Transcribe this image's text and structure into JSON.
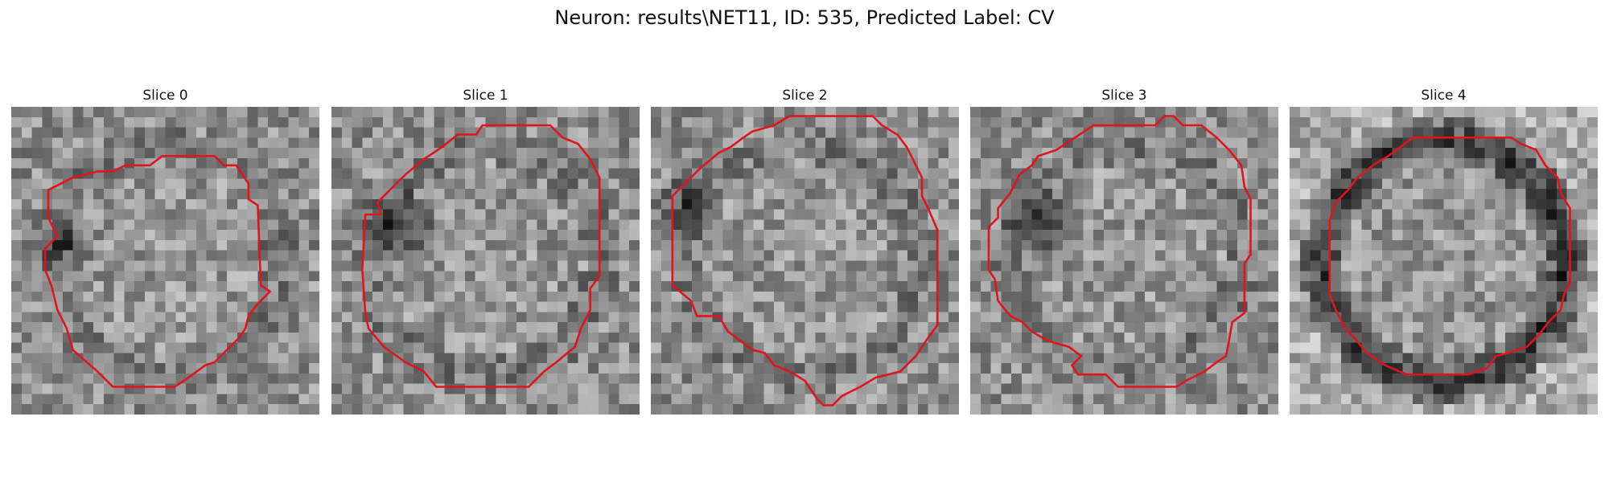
{
  "figure": {
    "title": "Neuron: results\\NET11, ID: 535, Predicted Label: CV"
  },
  "slices": [
    {
      "title": "Slice 0",
      "seed": 11,
      "darkBlob": [
        0.17,
        0.45,
        0.12
      ],
      "ring": 0.0,
      "contour": [
        [
          0.49,
          0.16
        ],
        [
          0.66,
          0.16
        ],
        [
          0.69,
          0.19
        ],
        [
          0.73,
          0.19
        ],
        [
          0.77,
          0.25
        ],
        [
          0.77,
          0.3
        ],
        [
          0.8,
          0.32
        ],
        [
          0.81,
          0.58
        ],
        [
          0.84,
          0.6
        ],
        [
          0.8,
          0.64
        ],
        [
          0.77,
          0.68
        ],
        [
          0.76,
          0.72
        ],
        [
          0.74,
          0.75
        ],
        [
          0.7,
          0.79
        ],
        [
          0.66,
          0.83
        ],
        [
          0.63,
          0.84
        ],
        [
          0.56,
          0.89
        ],
        [
          0.53,
          0.91
        ],
        [
          0.33,
          0.91
        ],
        [
          0.28,
          0.86
        ],
        [
          0.2,
          0.79
        ],
        [
          0.18,
          0.72
        ],
        [
          0.15,
          0.66
        ],
        [
          0.13,
          0.58
        ],
        [
          0.11,
          0.53
        ],
        [
          0.11,
          0.46
        ],
        [
          0.15,
          0.42
        ],
        [
          0.12,
          0.36
        ],
        [
          0.12,
          0.27
        ],
        [
          0.2,
          0.23
        ],
        [
          0.28,
          0.21
        ],
        [
          0.33,
          0.21
        ],
        [
          0.37,
          0.19
        ],
        [
          0.45,
          0.19
        ]
      ]
    },
    {
      "title": "Slice 1",
      "seed": 23,
      "darkBlob": [
        0.22,
        0.38,
        0.14
      ],
      "ring": 0.0,
      "contour": [
        [
          0.49,
          0.06
        ],
        [
          0.71,
          0.06
        ],
        [
          0.75,
          0.1
        ],
        [
          0.8,
          0.12
        ],
        [
          0.84,
          0.17
        ],
        [
          0.87,
          0.23
        ],
        [
          0.87,
          0.55
        ],
        [
          0.84,
          0.59
        ],
        [
          0.84,
          0.66
        ],
        [
          0.81,
          0.72
        ],
        [
          0.79,
          0.78
        ],
        [
          0.73,
          0.83
        ],
        [
          0.69,
          0.86
        ],
        [
          0.64,
          0.91
        ],
        [
          0.34,
          0.91
        ],
        [
          0.3,
          0.86
        ],
        [
          0.24,
          0.83
        ],
        [
          0.17,
          0.78
        ],
        [
          0.12,
          0.72
        ],
        [
          0.11,
          0.67
        ],
        [
          0.1,
          0.53
        ],
        [
          0.11,
          0.35
        ],
        [
          0.16,
          0.35
        ],
        [
          0.15,
          0.31
        ],
        [
          0.19,
          0.27
        ],
        [
          0.24,
          0.22
        ],
        [
          0.3,
          0.17
        ],
        [
          0.36,
          0.13
        ],
        [
          0.41,
          0.09
        ],
        [
          0.47,
          0.09
        ]
      ]
    },
    {
      "title": "Slice 2",
      "seed": 37,
      "darkBlob": [
        0.12,
        0.33,
        0.13
      ],
      "ring": 0.0,
      "contour": [
        [
          0.58,
          0.03
        ],
        [
          0.72,
          0.03
        ],
        [
          0.75,
          0.06
        ],
        [
          0.8,
          0.09
        ],
        [
          0.83,
          0.13
        ],
        [
          0.85,
          0.17
        ],
        [
          0.88,
          0.23
        ],
        [
          0.88,
          0.29
        ],
        [
          0.9,
          0.33
        ],
        [
          0.93,
          0.4
        ],
        [
          0.93,
          0.71
        ],
        [
          0.9,
          0.75
        ],
        [
          0.86,
          0.81
        ],
        [
          0.81,
          0.86
        ],
        [
          0.73,
          0.88
        ],
        [
          0.68,
          0.91
        ],
        [
          0.62,
          0.94
        ],
        [
          0.59,
          0.97
        ],
        [
          0.56,
          0.97
        ],
        [
          0.54,
          0.95
        ],
        [
          0.5,
          0.89
        ],
        [
          0.45,
          0.86
        ],
        [
          0.4,
          0.84
        ],
        [
          0.37,
          0.8
        ],
        [
          0.33,
          0.79
        ],
        [
          0.29,
          0.76
        ],
        [
          0.25,
          0.73
        ],
        [
          0.22,
          0.68
        ],
        [
          0.15,
          0.68
        ],
        [
          0.13,
          0.63
        ],
        [
          0.07,
          0.58
        ],
        [
          0.07,
          0.29
        ],
        [
          0.12,
          0.24
        ],
        [
          0.16,
          0.2
        ],
        [
          0.22,
          0.15
        ],
        [
          0.26,
          0.13
        ],
        [
          0.3,
          0.1
        ],
        [
          0.33,
          0.08
        ],
        [
          0.4,
          0.06
        ],
        [
          0.45,
          0.03
        ]
      ]
    },
    {
      "title": "Slice 3",
      "seed": 53,
      "darkBlob": [
        0.22,
        0.38,
        0.14
      ],
      "ring": 0.0,
      "contour": [
        [
          0.4,
          0.06
        ],
        [
          0.6,
          0.06
        ],
        [
          0.63,
          0.03
        ],
        [
          0.66,
          0.03
        ],
        [
          0.69,
          0.06
        ],
        [
          0.75,
          0.06
        ],
        [
          0.8,
          0.1
        ],
        [
          0.84,
          0.14
        ],
        [
          0.88,
          0.19
        ],
        [
          0.89,
          0.26
        ],
        [
          0.91,
          0.3
        ],
        [
          0.91,
          0.48
        ],
        [
          0.89,
          0.51
        ],
        [
          0.89,
          0.67
        ],
        [
          0.85,
          0.7
        ],
        [
          0.84,
          0.76
        ],
        [
          0.83,
          0.81
        ],
        [
          0.8,
          0.83
        ],
        [
          0.76,
          0.86
        ],
        [
          0.7,
          0.89
        ],
        [
          0.67,
          0.91
        ],
        [
          0.48,
          0.91
        ],
        [
          0.44,
          0.87
        ],
        [
          0.35,
          0.87
        ],
        [
          0.33,
          0.84
        ],
        [
          0.36,
          0.81
        ],
        [
          0.32,
          0.78
        ],
        [
          0.25,
          0.76
        ],
        [
          0.2,
          0.73
        ],
        [
          0.17,
          0.7
        ],
        [
          0.13,
          0.68
        ],
        [
          0.09,
          0.63
        ],
        [
          0.08,
          0.56
        ],
        [
          0.06,
          0.53
        ],
        [
          0.06,
          0.39
        ],
        [
          0.09,
          0.36
        ],
        [
          0.09,
          0.33
        ],
        [
          0.13,
          0.28
        ],
        [
          0.16,
          0.22
        ],
        [
          0.2,
          0.19
        ],
        [
          0.22,
          0.16
        ],
        [
          0.28,
          0.14
        ],
        [
          0.34,
          0.1
        ]
      ]
    },
    {
      "title": "Slice 4",
      "seed": 71,
      "darkBlob": [
        0.5,
        0.5,
        0.0
      ],
      "ring": 1.0,
      "contour": [
        [
          0.4,
          0.1
        ],
        [
          0.72,
          0.1
        ],
        [
          0.75,
          0.12
        ],
        [
          0.8,
          0.14
        ],
        [
          0.83,
          0.19
        ],
        [
          0.87,
          0.23
        ],
        [
          0.88,
          0.28
        ],
        [
          0.91,
          0.33
        ],
        [
          0.91,
          0.57
        ],
        [
          0.89,
          0.61
        ],
        [
          0.88,
          0.66
        ],
        [
          0.84,
          0.7
        ],
        [
          0.81,
          0.74
        ],
        [
          0.77,
          0.78
        ],
        [
          0.71,
          0.8
        ],
        [
          0.67,
          0.81
        ],
        [
          0.64,
          0.85
        ],
        [
          0.58,
          0.87
        ],
        [
          0.38,
          0.87
        ],
        [
          0.31,
          0.84
        ],
        [
          0.25,
          0.8
        ],
        [
          0.21,
          0.75
        ],
        [
          0.18,
          0.72
        ],
        [
          0.15,
          0.66
        ],
        [
          0.13,
          0.61
        ],
        [
          0.13,
          0.56
        ],
        [
          0.13,
          0.37
        ],
        [
          0.15,
          0.31
        ],
        [
          0.19,
          0.27
        ],
        [
          0.22,
          0.23
        ],
        [
          0.27,
          0.19
        ],
        [
          0.32,
          0.16
        ],
        [
          0.36,
          0.13
        ]
      ]
    }
  ]
}
